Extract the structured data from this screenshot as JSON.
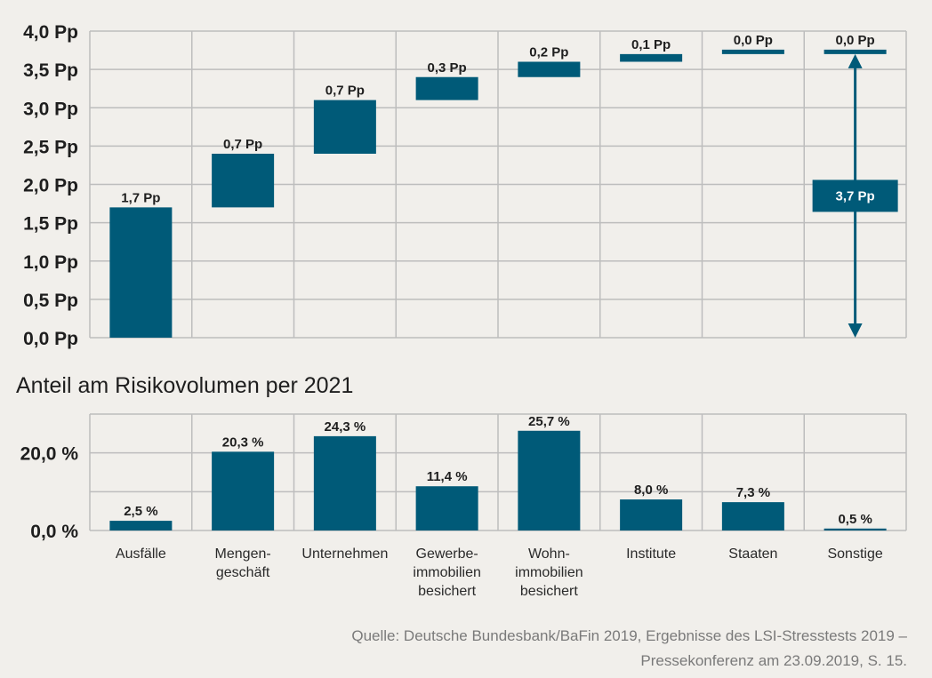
{
  "chart_data": [
    {
      "type": "bar",
      "subtype": "waterfall",
      "categories": [
        "Ausfälle",
        "Mengengeschäft",
        "Unternehmen",
        "Gewerbeimmobilien besichert",
        "Wohnimmobilien besichert",
        "Institute",
        "Staaten",
        "Sonstige"
      ],
      "values": [
        1.7,
        0.7,
        0.7,
        0.3,
        0.2,
        0.1,
        0.0,
        0.0
      ],
      "data_labels": [
        "1,7 Pp",
        "0,7 Pp",
        "0,7 Pp",
        "0,3 Pp",
        "0,2 Pp",
        "0,1 Pp",
        "0,0 Pp",
        "0,0 Pp"
      ],
      "ylim": [
        0,
        4.0
      ],
      "yticks": [
        0,
        0.5,
        1.0,
        1.5,
        2.0,
        2.5,
        3.0,
        3.5,
        4.0
      ],
      "ytick_labels": [
        "0,0 Pp",
        "0,5 Pp",
        "1,0 Pp",
        "1,5 Pp",
        "2,0 Pp",
        "2,5 Pp",
        "3,0 Pp",
        "3,5 Pp",
        "4,0 Pp"
      ],
      "total": 3.7,
      "total_label": "3,7 Pp",
      "grid": true
    },
    {
      "type": "bar",
      "title": "Anteil am Risikovolumen per 2021",
      "categories": [
        "Ausfälle",
        "Mengengeschäft",
        "Unternehmen",
        "Gewerbeimmobilien besichert",
        "Wohnimmobilien besichert",
        "Institute",
        "Staaten",
        "Sonstige"
      ],
      "category_lines": [
        [
          "Ausfälle"
        ],
        [
          "Mengen-",
          "geschäft"
        ],
        [
          "Unternehmen"
        ],
        [
          "Gewerbe-",
          "immobilien",
          "besichert"
        ],
        [
          "Wohn-",
          "immobilien",
          "besichert"
        ],
        [
          "Institute"
        ],
        [
          "Staaten"
        ],
        [
          "Sonstige"
        ]
      ],
      "values": [
        2.5,
        20.3,
        24.3,
        11.4,
        25.7,
        8.0,
        7.3,
        0.5
      ],
      "data_labels": [
        "2,5 %",
        "20,3 %",
        "24,3 %",
        "11,4 %",
        "25,7 %",
        "8,0 %",
        "7,3 %",
        "0,5 %"
      ],
      "ylim": [
        0,
        30
      ],
      "yticks": [
        0,
        20
      ],
      "ytick_labels": [
        "0,0 %",
        "20,0 %"
      ],
      "grid": true
    }
  ],
  "source": {
    "line1": "Quelle: Deutsche Bundesbank/BaFin 2019, Ergebnisse des LSI-Stresstests 2019 –",
    "line2": "Pressekonferenz am 23.09.2019, S. 15."
  },
  "colors": {
    "bar": "#005a78",
    "grid": "#bdbdbd",
    "background": "#f1efeb"
  }
}
